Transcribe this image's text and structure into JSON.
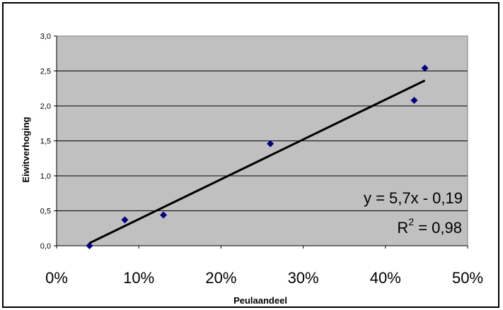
{
  "chart_data": {
    "type": "scatter",
    "title": "",
    "xlabel": "Peulaandeel",
    "ylabel": "Eiwitverhoging",
    "xlim": [
      0,
      0.5
    ],
    "ylim": [
      0,
      3.0
    ],
    "x_ticks": [
      0,
      0.1,
      0.2,
      0.3,
      0.4,
      0.5
    ],
    "x_tick_labels": [
      "0%",
      "10%",
      "20%",
      "30%",
      "40%",
      "50%"
    ],
    "y_ticks": [
      0,
      0.5,
      1.0,
      1.5,
      2.0,
      2.5,
      3.0
    ],
    "y_tick_labels": [
      "0,0",
      "0,5",
      "1,0",
      "1,5",
      "2,0",
      "2,5",
      "3,0"
    ],
    "grid": "horizontal",
    "plot_background": "#c0c0c0",
    "marker_color": "#000080",
    "points": [
      {
        "x": 0.04,
        "y": 0.0
      },
      {
        "x": 0.083,
        "y": 0.37
      },
      {
        "x": 0.13,
        "y": 0.44
      },
      {
        "x": 0.26,
        "y": 1.46
      },
      {
        "x": 0.435,
        "y": 2.08
      },
      {
        "x": 0.448,
        "y": 2.54
      }
    ],
    "trendline": {
      "type": "linear",
      "slope": 5.7,
      "intercept": -0.19,
      "x_range": [
        0.04,
        0.448
      ],
      "color": "#000000"
    },
    "annotations": {
      "equation": "y = 5,7x - 0,19",
      "r2_prefix": "R",
      "r2_superscript": "2",
      "r2_suffix": " = 0,98"
    }
  }
}
